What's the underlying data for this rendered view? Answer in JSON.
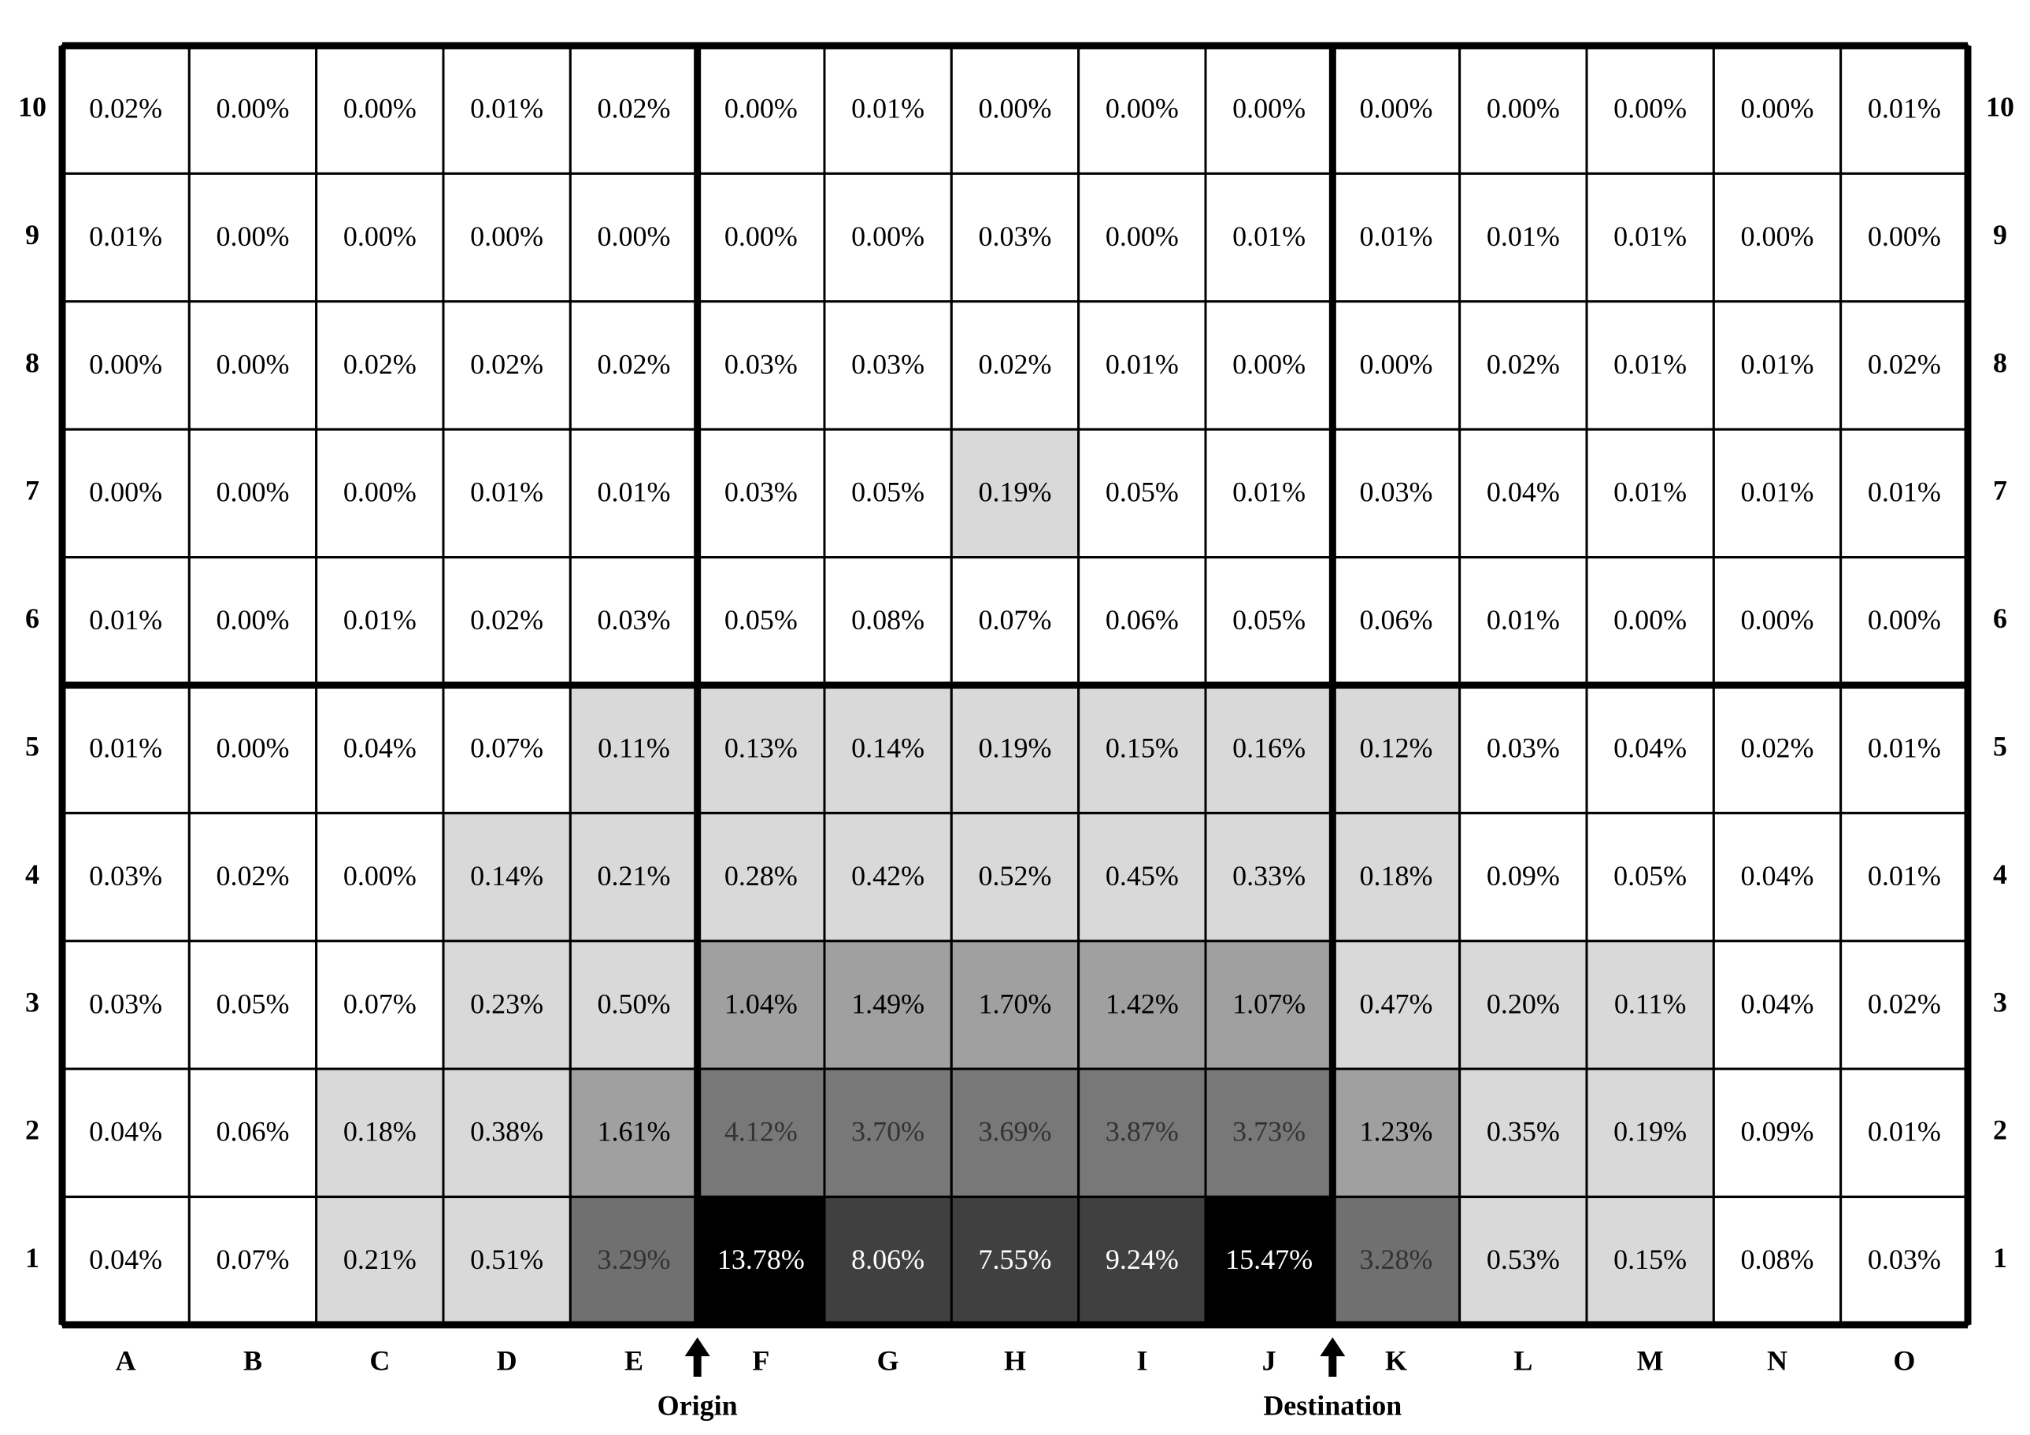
{
  "chart_data": {
    "type": "heatmap",
    "columns": [
      "A",
      "B",
      "C",
      "D",
      "E",
      "F",
      "G",
      "H",
      "I",
      "J",
      "K",
      "L",
      "M",
      "N",
      "O"
    ],
    "rows": [
      10,
      9,
      8,
      7,
      6,
      5,
      4,
      3,
      2,
      1
    ],
    "annotations": [
      "Origin",
      "Destination"
    ],
    "values": [
      [
        0.02,
        0.0,
        0.0,
        0.01,
        0.02,
        0.0,
        0.01,
        0.0,
        0.0,
        0.0,
        0.0,
        0.0,
        0.0,
        0.0,
        0.01
      ],
      [
        0.01,
        0.0,
        0.0,
        0.0,
        0.0,
        0.0,
        0.0,
        0.03,
        0.0,
        0.01,
        0.01,
        0.01,
        0.01,
        0.0,
        0.0
      ],
      [
        0.0,
        0.0,
        0.02,
        0.02,
        0.02,
        0.03,
        0.03,
        0.02,
        0.01,
        0.0,
        0.0,
        0.02,
        0.01,
        0.01,
        0.02
      ],
      [
        0.0,
        0.0,
        0.0,
        0.01,
        0.01,
        0.03,
        0.05,
        0.19,
        0.05,
        0.01,
        0.03,
        0.04,
        0.01,
        0.01,
        0.01
      ],
      [
        0.01,
        0.0,
        0.01,
        0.02,
        0.03,
        0.05,
        0.08,
        0.07,
        0.06,
        0.05,
        0.06,
        0.01,
        0.0,
        0.0,
        0.0
      ],
      [
        0.01,
        0.0,
        0.04,
        0.07,
        0.11,
        0.13,
        0.14,
        0.19,
        0.15,
        0.16,
        0.12,
        0.03,
        0.04,
        0.02,
        0.01
      ],
      [
        0.03,
        0.02,
        0.0,
        0.14,
        0.21,
        0.28,
        0.42,
        0.52,
        0.45,
        0.33,
        0.18,
        0.09,
        0.05,
        0.04,
        0.01
      ],
      [
        0.03,
        0.05,
        0.07,
        0.23,
        0.5,
        1.04,
        1.49,
        1.7,
        1.42,
        1.07,
        0.47,
        0.2,
        0.11,
        0.04,
        0.02
      ],
      [
        0.04,
        0.06,
        0.18,
        0.38,
        1.61,
        4.12,
        3.7,
        3.69,
        3.87,
        3.73,
        1.23,
        0.35,
        0.19,
        0.09,
        0.01
      ],
      [
        0.04,
        0.07,
        0.21,
        0.51,
        3.29,
        13.78,
        8.06,
        7.55,
        9.24,
        15.47,
        3.28,
        0.53,
        0.15,
        0.08,
        0.03
      ]
    ],
    "value_labels": [
      [
        "0.02%",
        "0.00%",
        "0.00%",
        "0.01%",
        "0.02%",
        "0.00%",
        "0.01%",
        "0.00%",
        "0.00%",
        "0.00%",
        "0.00%",
        "0.00%",
        "0.00%",
        "0.00%",
        "0.01%"
      ],
      [
        "0.01%",
        "0.00%",
        "0.00%",
        "0.00%",
        "0.00%",
        "0.00%",
        "0.00%",
        "0.03%",
        "0.00%",
        "0.01%",
        "0.01%",
        "0.01%",
        "0.01%",
        "0.00%",
        "0.00%"
      ],
      [
        "0.00%",
        "0.00%",
        "0.02%",
        "0.02%",
        "0.02%",
        "0.03%",
        "0.03%",
        "0.02%",
        "0.01%",
        "0.00%",
        "0.00%",
        "0.02%",
        "0.01%",
        "0.01%",
        "0.02%"
      ],
      [
        "0.00%",
        "0.00%",
        "0.00%",
        "0.01%",
        "0.01%",
        "0.03%",
        "0.05%",
        "0.19%",
        "0.05%",
        "0.01%",
        "0.03%",
        "0.04%",
        "0.01%",
        "0.01%",
        "0.01%"
      ],
      [
        "0.01%",
        "0.00%",
        "0.01%",
        "0.02%",
        "0.03%",
        "0.05%",
        "0.08%",
        "0.07%",
        "0.06%",
        "0.05%",
        "0.06%",
        "0.01%",
        "0.00%",
        "0.00%",
        "0.00%"
      ],
      [
        "0.01%",
        "0.00%",
        "0.04%",
        "0.07%",
        "0.11%",
        "0.13%",
        "0.14%",
        "0.19%",
        "0.15%",
        "0.16%",
        "0.12%",
        "0.03%",
        "0.04%",
        "0.02%",
        "0.01%"
      ],
      [
        "0.03%",
        "0.02%",
        "0.00%",
        "0.14%",
        "0.21%",
        "0.28%",
        "0.42%",
        "0.52%",
        "0.45%",
        "0.33%",
        "0.18%",
        "0.09%",
        "0.05%",
        "0.04%",
        "0.01%"
      ],
      [
        "0.03%",
        "0.05%",
        "0.07%",
        "0.23%",
        "0.50%",
        "1.04%",
        "1.49%",
        "1.70%",
        "1.42%",
        "1.07%",
        "0.47%",
        "0.20%",
        "0.11%",
        "0.04%",
        "0.02%"
      ],
      [
        "0.04%",
        "0.06%",
        "0.18%",
        "0.38%",
        "1.61%",
        "4.12%",
        "3.70%",
        "3.69%",
        "3.87%",
        "3.73%",
        "1.23%",
        "0.35%",
        "0.19%",
        "0.09%",
        "0.01%"
      ],
      [
        "0.04%",
        "0.07%",
        "0.21%",
        "0.51%",
        "3.29%",
        "13.78%",
        "8.06%",
        "7.55%",
        "9.24%",
        "15.47%",
        "3.28%",
        "0.53%",
        "0.15%",
        "0.08%",
        "0.03%"
      ]
    ],
    "colors": [
      [
        "#ffffff",
        "#ffffff",
        "#ffffff",
        "#ffffff",
        "#ffffff",
        "#ffffff",
        "#ffffff",
        "#ffffff",
        "#ffffff",
        "#ffffff",
        "#ffffff",
        "#ffffff",
        "#ffffff",
        "#ffffff",
        "#ffffff"
      ],
      [
        "#ffffff",
        "#ffffff",
        "#ffffff",
        "#ffffff",
        "#ffffff",
        "#ffffff",
        "#ffffff",
        "#ffffff",
        "#ffffff",
        "#ffffff",
        "#ffffff",
        "#ffffff",
        "#ffffff",
        "#ffffff",
        "#ffffff"
      ],
      [
        "#ffffff",
        "#ffffff",
        "#ffffff",
        "#ffffff",
        "#ffffff",
        "#ffffff",
        "#ffffff",
        "#ffffff",
        "#ffffff",
        "#ffffff",
        "#ffffff",
        "#ffffff",
        "#ffffff",
        "#ffffff",
        "#ffffff"
      ],
      [
        "#ffffff",
        "#ffffff",
        "#ffffff",
        "#ffffff",
        "#ffffff",
        "#ffffff",
        "#ffffff",
        "#d9d9d9",
        "#ffffff",
        "#ffffff",
        "#ffffff",
        "#ffffff",
        "#ffffff",
        "#ffffff",
        "#ffffff"
      ],
      [
        "#ffffff",
        "#ffffff",
        "#ffffff",
        "#ffffff",
        "#ffffff",
        "#ffffff",
        "#ffffff",
        "#ffffff",
        "#ffffff",
        "#ffffff",
        "#ffffff",
        "#ffffff",
        "#ffffff",
        "#ffffff",
        "#ffffff"
      ],
      [
        "#ffffff",
        "#ffffff",
        "#ffffff",
        "#ffffff",
        "#d9d9d9",
        "#d9d9d9",
        "#d9d9d9",
        "#d9d9d9",
        "#d9d9d9",
        "#d9d9d9",
        "#d9d9d9",
        "#ffffff",
        "#ffffff",
        "#ffffff",
        "#ffffff"
      ],
      [
        "#ffffff",
        "#ffffff",
        "#ffffff",
        "#d9d9d9",
        "#d9d9d9",
        "#d9d9d9",
        "#d9d9d9",
        "#d9d9d9",
        "#d9d9d9",
        "#d9d9d9",
        "#d9d9d9",
        "#ffffff",
        "#ffffff",
        "#ffffff",
        "#ffffff"
      ],
      [
        "#ffffff",
        "#ffffff",
        "#ffffff",
        "#d9d9d9",
        "#d9d9d9",
        "#a0a0a0",
        "#a0a0a0",
        "#a0a0a0",
        "#a0a0a0",
        "#a0a0a0",
        "#d9d9d9",
        "#d9d9d9",
        "#d9d9d9",
        "#ffffff",
        "#ffffff"
      ],
      [
        "#ffffff",
        "#ffffff",
        "#d9d9d9",
        "#d9d9d9",
        "#a0a0a0",
        "#787878",
        "#787878",
        "#787878",
        "#787878",
        "#787878",
        "#a0a0a0",
        "#d9d9d9",
        "#d9d9d9",
        "#ffffff",
        "#ffffff"
      ],
      [
        "#ffffff",
        "#ffffff",
        "#d9d9d9",
        "#d9d9d9",
        "#707070",
        "#000000",
        "#404040",
        "#404040",
        "#404040",
        "#000000",
        "#707070",
        "#d9d9d9",
        "#d9d9d9",
        "#ffffff",
        "#ffffff"
      ]
    ]
  }
}
